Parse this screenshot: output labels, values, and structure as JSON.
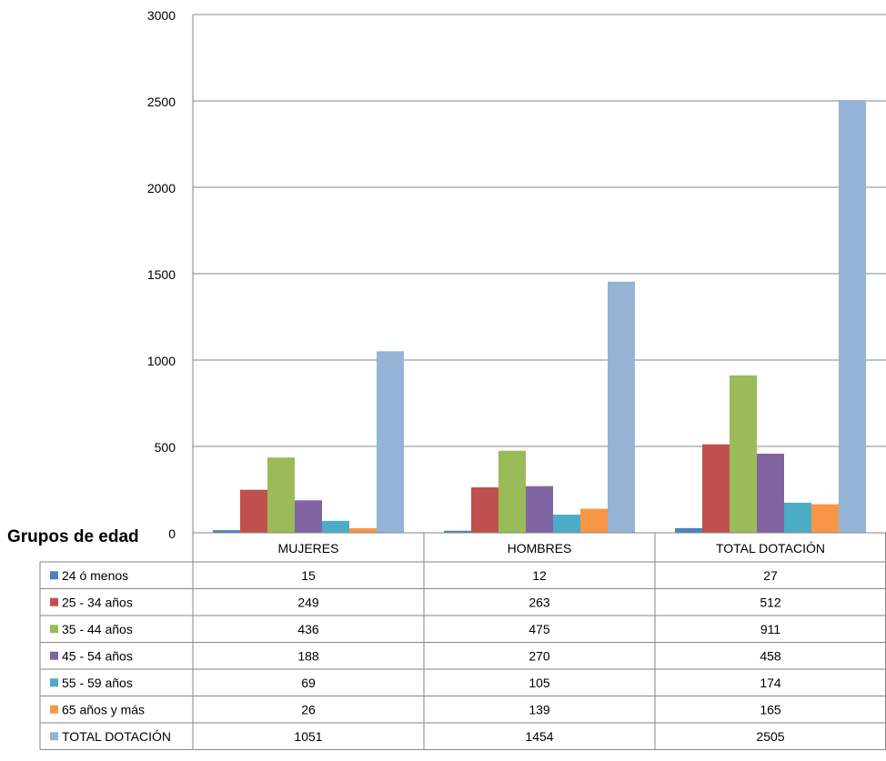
{
  "chart_data": {
    "type": "bar",
    "title": "",
    "corner_label": "Grupos de edad",
    "categories": [
      "MUJERES",
      "HOMBRES",
      "TOTAL DOTACIÓN"
    ],
    "series": [
      {
        "name": "24 ó menos",
        "color": "#4F81BD",
        "values": [
          15,
          12,
          27
        ]
      },
      {
        "name": "25 - 34 años",
        "color": "#C0504D",
        "values": [
          249,
          263,
          512
        ]
      },
      {
        "name": "35 - 44 años",
        "color": "#9BBB59",
        "values": [
          436,
          475,
          911
        ]
      },
      {
        "name": "45 - 54 años",
        "color": "#8064A2",
        "values": [
          188,
          270,
          458
        ]
      },
      {
        "name": "55 - 59 años",
        "color": "#4BACC6",
        "values": [
          69,
          105,
          174
        ]
      },
      {
        "name": "65 años y más",
        "color": "#F79646",
        "values": [
          26,
          139,
          165
        ]
      },
      {
        "name": "TOTAL DOTACIÓN",
        "color": "#95B3D7",
        "values": [
          1051,
          1454,
          2505
        ]
      }
    ],
    "ylim": [
      0,
      3000
    ],
    "yticks": [
      "0",
      "500",
      "1000",
      "1500",
      "2000",
      "2500",
      "3000"
    ],
    "grid": true,
    "legend": "data-table"
  }
}
